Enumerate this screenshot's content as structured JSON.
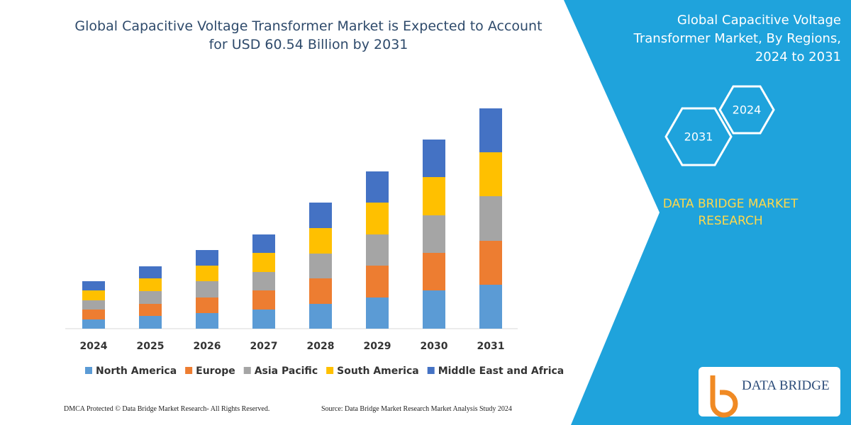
{
  "chart_data": {
    "type": "stacked-bar",
    "title": "Global Capacitive Voltage Transformer Market is Expected to Account for USD 60.54 Billion by 2031",
    "categories": [
      "2024",
      "2025",
      "2026",
      "2027",
      "2028",
      "2029",
      "2030",
      "2031"
    ],
    "series": [
      {
        "name": "North America",
        "color": "#5b9bd5",
        "values": [
          13,
          18,
          22,
          27,
          35,
          44,
          54,
          62
        ]
      },
      {
        "name": "Europe",
        "color": "#ed7d31",
        "values": [
          14,
          17,
          22,
          27,
          36,
          45,
          53,
          62
        ]
      },
      {
        "name": "Asia Pacific",
        "color": "#a5a5a5",
        "values": [
          13,
          18,
          23,
          26,
          35,
          44,
          53,
          63
        ]
      },
      {
        "name": "South America",
        "color": "#ffc000",
        "values": [
          14,
          18,
          22,
          27,
          36,
          45,
          54,
          62
        ]
      },
      {
        "name": "Middle East and Africa",
        "color": "#4472c4",
        "values": [
          13,
          17,
          22,
          26,
          36,
          44,
          53,
          62
        ]
      }
    ]
  },
  "side_panel": {
    "title": "Global Capacitive Voltage Transformer Market, By Regions, 2024 to 2031",
    "badges": [
      "2024",
      "2031"
    ],
    "brand": "DATA BRIDGE MARKET RESEARCH"
  },
  "logo": "DATA BRIDGE",
  "footer": {
    "left": "DMCA Protected © Data Bridge Market Research-  All Rights Reserved.",
    "right": "Source: Data Bridge Market Research  Market Analysis Study 2024"
  }
}
